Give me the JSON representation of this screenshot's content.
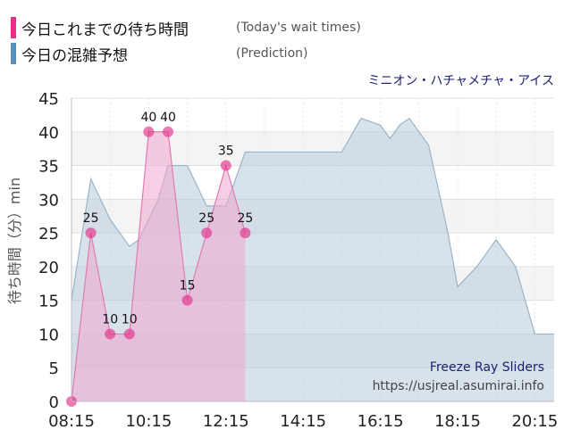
{
  "legend": [
    {
      "label": "今日これまでの待ち時間",
      "sub": "(Today's wait times)",
      "color": "#e4318c"
    },
    {
      "label": "今日の混雑予想",
      "sub": "(Prediction)",
      "color": "#5b8fb8"
    }
  ],
  "ride_name": "ミニオン・ハチャメチャ・アイス",
  "watermark": {
    "line1": "Freeze Ray Sliders",
    "line2": "https://usjreal.asumirai.info"
  },
  "chart_data": {
    "type": "area",
    "ylabel": "待ち時間（分）min",
    "ylim": [
      0,
      45
    ],
    "yticks": [
      0,
      5,
      10,
      15,
      20,
      25,
      30,
      35,
      40,
      45
    ],
    "xlim": [
      "08:15",
      "20:45"
    ],
    "xticks": [
      "08:15",
      "10:15",
      "12:15",
      "14:15",
      "16:15",
      "18:15",
      "20:15"
    ],
    "grid": true,
    "series": [
      {
        "name": "今日の混雑予想",
        "color": "#b8cbda",
        "points": [
          [
            "08:15",
            15
          ],
          [
            "08:45",
            33
          ],
          [
            "09:15",
            27
          ],
          [
            "09:45",
            23
          ],
          [
            "10:00",
            24
          ],
          [
            "10:30",
            30
          ],
          [
            "10:45",
            35
          ],
          [
            "11:15",
            35
          ],
          [
            "11:45",
            29
          ],
          [
            "12:15",
            29
          ],
          [
            "12:45",
            37
          ],
          [
            "13:15",
            37
          ],
          [
            "14:15",
            37
          ],
          [
            "15:00",
            37
          ],
          [
            "15:15",
            37
          ],
          [
            "15:45",
            42
          ],
          [
            "16:15",
            41
          ],
          [
            "16:30",
            39
          ],
          [
            "16:45",
            41
          ],
          [
            "17:00",
            42
          ],
          [
            "17:30",
            38
          ],
          [
            "18:00",
            25
          ],
          [
            "18:15",
            17
          ],
          [
            "18:45",
            20
          ],
          [
            "19:15",
            24
          ],
          [
            "19:45",
            20
          ],
          [
            "20:15",
            10
          ],
          [
            "20:45",
            10
          ]
        ]
      },
      {
        "name": "今日これまでの待ち時間",
        "color": "#e4318c",
        "points": [
          [
            "08:15",
            0
          ],
          [
            "08:45",
            25
          ],
          [
            "09:15",
            10
          ],
          [
            "09:45",
            10
          ],
          [
            "10:15",
            40
          ],
          [
            "10:45",
            40
          ],
          [
            "11:15",
            15
          ],
          [
            "11:45",
            25
          ],
          [
            "12:15",
            35
          ],
          [
            "12:45",
            25
          ]
        ],
        "labels": [
          "",
          "25",
          "10",
          "10",
          "40",
          "40",
          "15",
          "25",
          "35",
          "25"
        ]
      }
    ]
  }
}
